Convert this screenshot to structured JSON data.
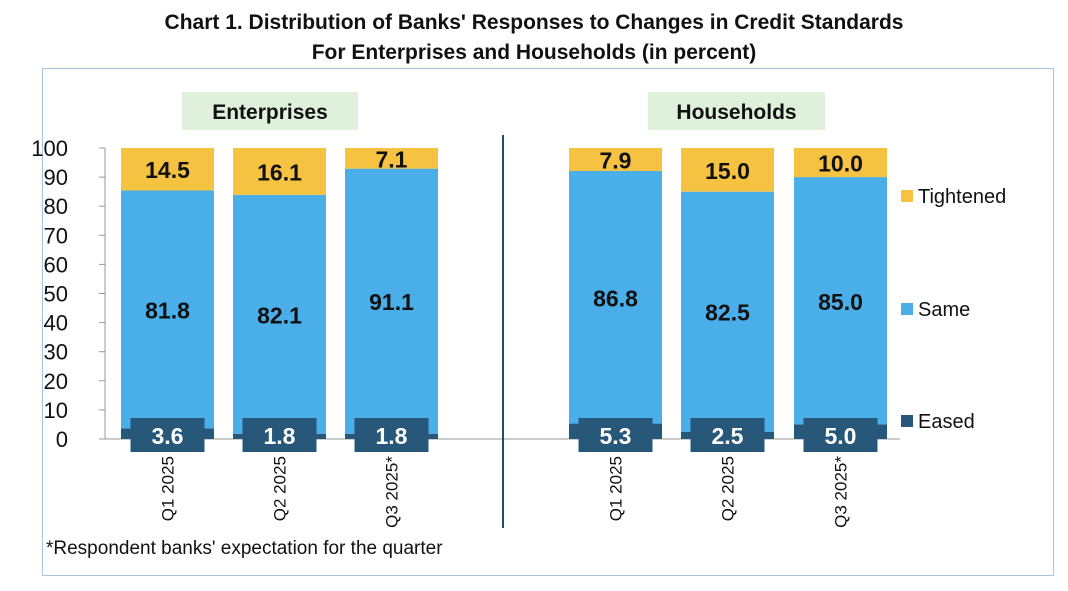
{
  "title_line1": "Chart 1. Distribution of Banks' Responses to Changes in Credit Standards",
  "title_line2": "For Enterprises and Households (in percent)",
  "footnote": "*Respondent banks' expectation for the quarter",
  "colors": {
    "eased": "#27587a",
    "same": "#4aaee9",
    "tightened": "#f5c242",
    "panel_bg": "#dff1da",
    "frame": "#a9c4de",
    "divider": "#1f4e5a"
  },
  "chart_data": {
    "type": "bar",
    "stacked": true,
    "y_ticks": [
      "0",
      "10",
      "20",
      "30",
      "40",
      "50",
      "60",
      "70",
      "80",
      "90",
      "100"
    ],
    "ylim": [
      0,
      100
    ],
    "legend": [
      "Tightened",
      "Same",
      "Eased"
    ],
    "legend_position": "right",
    "panels": [
      {
        "label": "Enterprises",
        "categories": [
          "Q1 2025",
          "Q2 2025",
          "Q3 2025*"
        ],
        "series": [
          {
            "name": "Eased",
            "values": [
              3.6,
              1.8,
              1.8
            ],
            "labels": [
              "3.6",
              "1.8",
              "1.8"
            ]
          },
          {
            "name": "Same",
            "values": [
              81.8,
              82.1,
              91.1
            ],
            "labels": [
              "81.8",
              "82.1",
              "91.1"
            ]
          },
          {
            "name": "Tightened",
            "values": [
              14.5,
              16.1,
              7.1
            ],
            "labels": [
              "14.5",
              "16.1",
              "7.1"
            ]
          }
        ]
      },
      {
        "label": "Households",
        "categories": [
          "Q1 2025",
          "Q2 2025",
          "Q3 2025*"
        ],
        "series": [
          {
            "name": "Eased",
            "values": [
              5.3,
              2.5,
              5.0
            ],
            "labels": [
              "5.3",
              "2.5",
              "5.0"
            ]
          },
          {
            "name": "Same",
            "values": [
              86.8,
              82.5,
              85.0
            ],
            "labels": [
              "86.8",
              "82.5",
              "85.0"
            ]
          },
          {
            "name": "Tightened",
            "values": [
              7.9,
              15.0,
              10.0
            ],
            "labels": [
              "7.9",
              "15.0",
              "10.0"
            ]
          }
        ]
      }
    ]
  }
}
